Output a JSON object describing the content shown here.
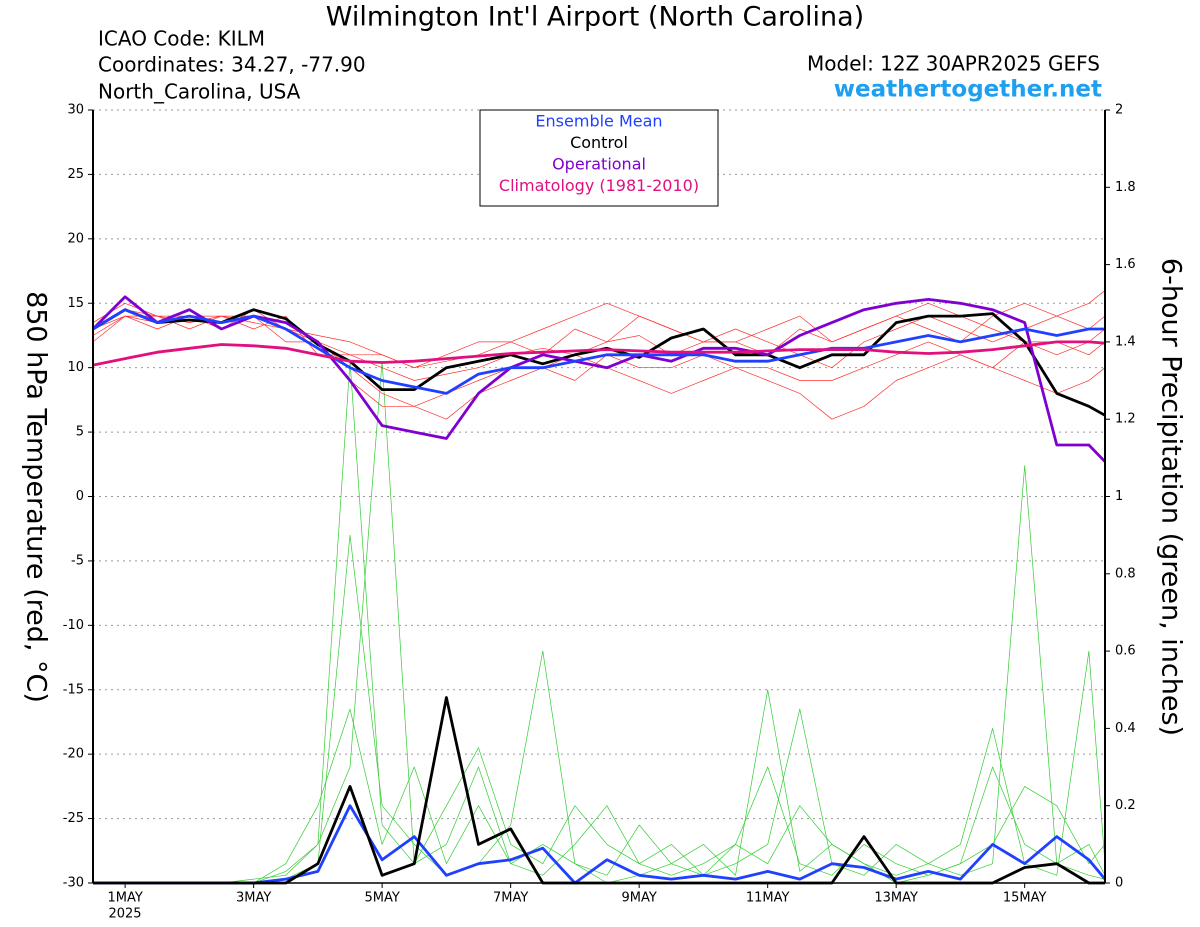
{
  "chart_data": {
    "type": "line",
    "title": "Wilmington Int'l Airport (North Carolina)",
    "annotations": [
      "ICAO Code: KILM",
      "Coordinates: 34.27, -77.90",
      "North_Carolina, USA",
      "Model: 12Z 30APR2025 GEFS",
      "weathertogether.net"
    ],
    "ylabel": "850 hPa Temperature (red, °C)",
    "y2label": "6-hour Precipitation (green, inches)",
    "x_year_label": "2025",
    "x": [
      -0.5,
      0,
      0.5,
      1,
      1.5,
      2,
      2.5,
      3,
      3.5,
      4,
      4.5,
      5,
      5.5,
      6,
      6.5,
      7,
      7.5,
      8,
      8.5,
      9,
      9.5,
      10,
      10.5,
      11,
      11.5,
      12,
      12.5,
      13,
      13.5,
      14,
      14.5,
      15,
      15.25
    ],
    "xlim": [
      -0.5,
      15.25
    ],
    "xticks": [
      {
        "value": 0,
        "label": "1MAY"
      },
      {
        "value": 2,
        "label": "3MAY"
      },
      {
        "value": 4,
        "label": "5MAY"
      },
      {
        "value": 6,
        "label": "7MAY"
      },
      {
        "value": 8,
        "label": "9MAY"
      },
      {
        "value": 10,
        "label": "11MAY"
      },
      {
        "value": 12,
        "label": "13MAY"
      },
      {
        "value": 14,
        "label": "15MAY"
      }
    ],
    "ylim": [
      -30,
      30
    ],
    "yticks": [
      -30,
      -25,
      -20,
      -15,
      -10,
      -5,
      0,
      5,
      10,
      15,
      20,
      25,
      30
    ],
    "y2lim": [
      0,
      2
    ],
    "y2ticks": [
      0,
      0.2,
      0.4,
      0.6,
      0.8,
      1,
      1.2,
      1.4,
      1.6,
      1.8,
      2
    ],
    "grid": true,
    "legend_position": "top",
    "series": [
      {
        "color": "#33cc33",
        "axis": "y2",
        "values": [
          0,
          0,
          0,
          0,
          0,
          0,
          0.01,
          0.05,
          0.9,
          0.2,
          0.1,
          0.02,
          0.05,
          0.15,
          0.6,
          0.05,
          0,
          0.02,
          0.05,
          0.1,
          0.02,
          0.5,
          0.03,
          0.1,
          0.05,
          0,
          0.02,
          0.05,
          0.3,
          0.1,
          0.05,
          0.02,
          0.01
        ]
      },
      {
        "color": "#33cc33",
        "axis": "y2",
        "values": [
          0,
          0,
          0,
          0,
          0,
          0.01,
          0.02,
          0.1,
          0.3,
          1.35,
          0.05,
          0.1,
          0.3,
          0.05,
          0.02,
          0.1,
          0.2,
          0.05,
          0.1,
          0.02,
          0.05,
          0.1,
          0.45,
          0.05,
          0.02,
          0.1,
          0.05,
          0.02,
          0.05,
          1.08,
          0.05,
          0.1,
          0.02
        ]
      },
      {
        "color": "#33cc33",
        "axis": "y2",
        "values": [
          0,
          0,
          0,
          0,
          0,
          0,
          0.05,
          0.2,
          0.45,
          0.1,
          0.3,
          0.05,
          0.2,
          0.05,
          0.1,
          0.05,
          0.02,
          0.15,
          0.05,
          0.02,
          0.1,
          0.05,
          0.2,
          0.1,
          0.05,
          0.02,
          0.05,
          0.1,
          0.4,
          0.05,
          0.02,
          0.6,
          0.05
        ]
      },
      {
        "color": "#33cc33",
        "axis": "y2",
        "values": [
          0,
          0,
          0,
          0,
          0,
          0,
          0.03,
          0.1,
          1.35,
          0.15,
          0.05,
          0.2,
          0.35,
          0.1,
          0.05,
          0.2,
          0.1,
          0.05,
          0.02,
          0.05,
          0.1,
          0.3,
          0.05,
          0.02,
          0.1,
          0.05,
          0.02,
          0.05,
          0.1,
          0.25,
          0.2,
          0.05,
          0.1
        ]
      },
      {
        "color": "#ff3030",
        "values": [
          13,
          14,
          14,
          13.5,
          14,
          14,
          13.5,
          12,
          11,
          10,
          9,
          9.5,
          10,
          11,
          11.5,
          11,
          12,
          12.5,
          11,
          12,
          13,
          12,
          11,
          10,
          12,
          13,
          14,
          13,
          12,
          13,
          14,
          15,
          16
        ]
      },
      {
        "color": "#ff3030",
        "values": [
          12.5,
          14,
          13.5,
          14,
          13,
          14.5,
          13,
          12,
          10,
          8,
          7,
          6,
          8,
          9,
          10,
          11,
          10,
          9,
          8,
          9,
          10,
          9,
          8,
          6,
          7,
          9,
          10,
          11,
          10,
          9,
          8,
          9,
          10
        ]
      },
      {
        "color": "#ff3030",
        "values": [
          13,
          14.5,
          14,
          13,
          14,
          13,
          14,
          11,
          11,
          11,
          10,
          11,
          12,
          12,
          11,
          13,
          12,
          14,
          13,
          12,
          12,
          11,
          13,
          12,
          13,
          14,
          13,
          12,
          14,
          15,
          14,
          13,
          14
        ]
      },
      {
        "color": "#ff3030",
        "values": [
          13.5,
          15,
          14,
          14,
          13.5,
          14,
          12,
          12,
          9,
          7,
          7,
          8,
          9,
          10,
          10,
          9,
          11,
          10,
          10,
          11,
          10,
          10,
          9,
          9,
          10,
          11,
          12,
          11,
          10,
          12,
          12,
          11,
          12
        ]
      },
      {
        "color": "#ff3030",
        "values": [
          12,
          14,
          13,
          14,
          14,
          13.5,
          13,
          12.5,
          12,
          11,
          10,
          10.5,
          11,
          12,
          13,
          14,
          15,
          14,
          13,
          12,
          12,
          13,
          14,
          12,
          13,
          14,
          15,
          14,
          13,
          12,
          11,
          12,
          13
        ]
      },
      {
        "name": "Ensemble Mean",
        "color": "#2040ff",
        "axis": "y2",
        "values": [
          0,
          0,
          0,
          0,
          0,
          0,
          0.01,
          0.03,
          0.2,
          0.06,
          0.12,
          0.02,
          0.05,
          0.06,
          0.09,
          0,
          0.06,
          0.02,
          0.01,
          0.02,
          0.01,
          0.03,
          0.01,
          0.05,
          0.04,
          0.01,
          0.03,
          0.01,
          0.1,
          0.05,
          0.12,
          0.06,
          0.01
        ]
      },
      {
        "name": "Control",
        "color": "#000000",
        "axis": "y2",
        "values": [
          0,
          0,
          0,
          0,
          0,
          0,
          0,
          0.05,
          0.25,
          0.02,
          0.05,
          0.48,
          0.1,
          0.14,
          0,
          0,
          0,
          0,
          0,
          0,
          0,
          0,
          0,
          0,
          0.12,
          0,
          0,
          0,
          0,
          0.04,
          0.05,
          0,
          0
        ]
      },
      {
        "name": "Control",
        "color": "#000000",
        "values": [
          13,
          14.5,
          13.5,
          13.7,
          13.5,
          14.5,
          13.8,
          11.8,
          10.5,
          8.3,
          8.3,
          10,
          10.5,
          11,
          10.3,
          11,
          11.5,
          10.8,
          12.3,
          13,
          11,
          11,
          10,
          11,
          11,
          13.5,
          14,
          14,
          14.2,
          12,
          8,
          7,
          6.3
        ]
      },
      {
        "name": "Operational",
        "color": "#8000d0",
        "values": [
          13,
          15.5,
          13.5,
          14.5,
          13,
          14,
          13.5,
          12,
          9,
          5.5,
          5,
          4.5,
          8,
          10,
          11,
          10.5,
          10,
          11,
          10.5,
          11.5,
          11.5,
          11,
          12.5,
          13.5,
          14.5,
          15,
          15.3,
          15,
          14.5,
          13.5,
          4,
          4,
          2.7
        ]
      },
      {
        "name": "Ensemble Mean",
        "color": "#2040ff",
        "values": [
          13,
          14.5,
          13.5,
          14,
          13.5,
          14,
          13,
          11.5,
          10,
          9,
          8.5,
          8,
          9.5,
          10,
          10,
          10.5,
          11,
          11,
          11,
          11,
          10.5,
          10.5,
          11,
          11.5,
          11.5,
          12,
          12.5,
          12,
          12.5,
          13,
          12.5,
          13,
          13
        ]
      },
      {
        "name": "Climatology (1981-2010)",
        "color": "#e0107f",
        "values": [
          10.2,
          10.7,
          11.2,
          11.5,
          11.8,
          11.7,
          11.5,
          11,
          10.5,
          10.4,
          10.5,
          10.7,
          10.9,
          11.1,
          11.2,
          11.3,
          11.4,
          11.3,
          11.2,
          11.2,
          11.2,
          11.3,
          11.4,
          11.4,
          11.4,
          11.2,
          11.1,
          11.2,
          11.4,
          11.7,
          12,
          12,
          11.9
        ]
      }
    ]
  }
}
